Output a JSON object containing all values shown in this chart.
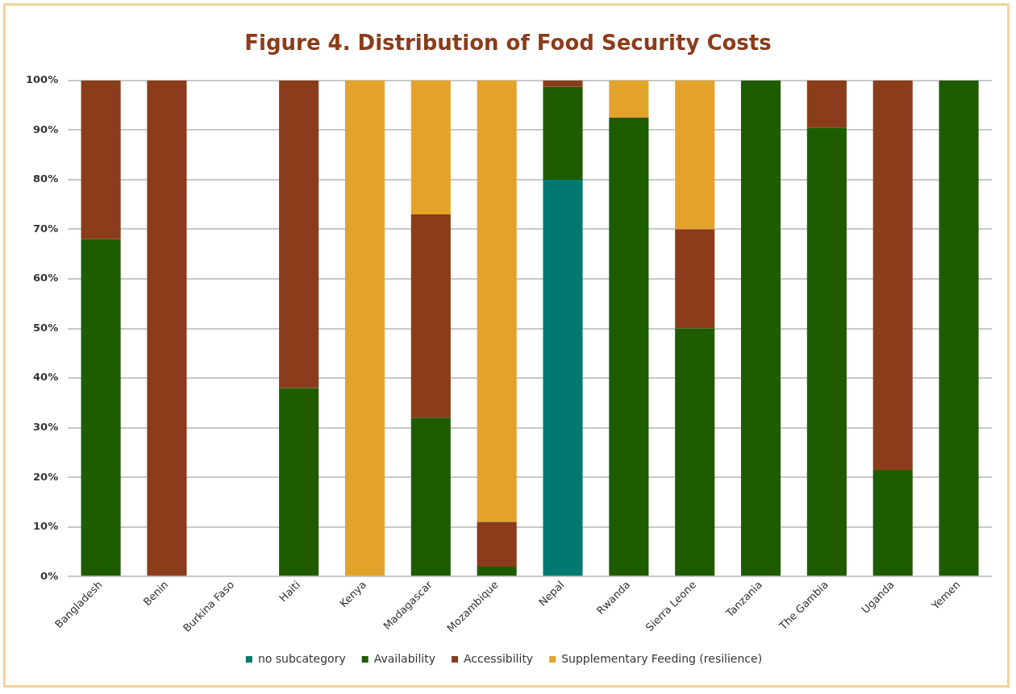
{
  "chart_data": {
    "type": "bar",
    "title": "Figure 4. Distribution of Food Security Costs",
    "stacked": true,
    "categories": [
      "Bangladesh",
      "Benin",
      "Burkina Faso",
      "Haiti",
      "Kenya",
      "Madagascar",
      "Mozambique",
      "Nepal",
      "Rwanda",
      "Sierra Leone",
      "Tanzania",
      "The Gambia",
      "Uganda",
      "Yemen"
    ],
    "series": [
      {
        "name": "no subcategory",
        "color": "#007a70",
        "values": [
          null,
          null,
          null,
          null,
          null,
          null,
          null,
          80,
          null,
          null,
          null,
          null,
          null,
          null
        ]
      },
      {
        "name": "Availability",
        "color": "#1f5c00",
        "values": [
          68,
          null,
          null,
          38,
          null,
          32,
          2,
          18.7,
          92.5,
          50,
          100,
          90.5,
          21.5,
          100
        ]
      },
      {
        "name": "Accessibility",
        "color": "#8b3c1a",
        "values": [
          32,
          100,
          null,
          62,
          null,
          41,
          9,
          1.3,
          null,
          20,
          null,
          9.5,
          78.5,
          null
        ]
      },
      {
        "name": "Supplementary Feeding (resilience)",
        "color": "#e3a32b",
        "values": [
          null,
          null,
          null,
          null,
          100,
          27,
          89,
          null,
          7.5,
          30,
          null,
          null,
          null,
          null
        ]
      }
    ],
    "ylim": [
      0,
      100
    ],
    "yticks": [
      {
        "value": 0,
        "label": "0%"
      },
      {
        "value": 10,
        "label": "10%"
      },
      {
        "value": 20,
        "label": "20%"
      },
      {
        "value": 30,
        "label": "30%"
      },
      {
        "value": 40,
        "label": "40%"
      },
      {
        "value": 50,
        "label": "50%"
      },
      {
        "value": 60,
        "label": "60%"
      },
      {
        "value": 70,
        "label": "70%"
      },
      {
        "value": 80,
        "label": "80%"
      },
      {
        "value": 90,
        "label": "90%"
      },
      {
        "value": 100,
        "label": "100%"
      }
    ],
    "grid": "y",
    "legend": "bottom"
  }
}
